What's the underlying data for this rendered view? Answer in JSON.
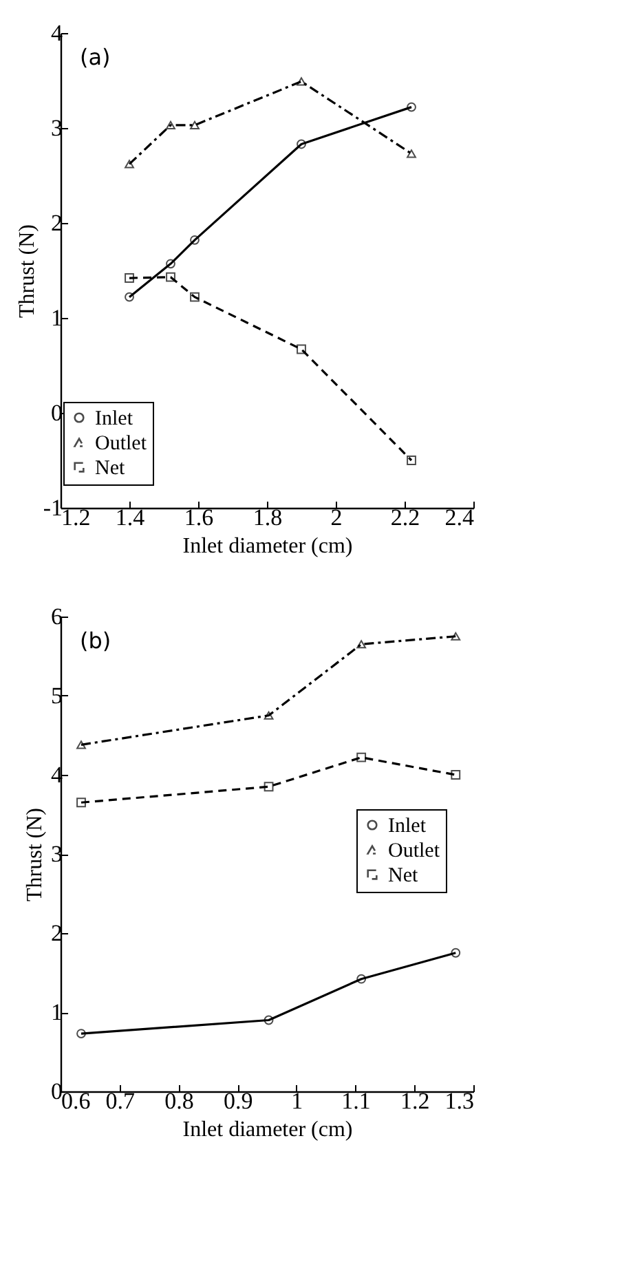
{
  "chart_data": [
    {
      "type": "line",
      "xlabel": "Inlet diameter (cm)",
      "ylabel": "Thrust (N)",
      "annotations": [
        "(a)"
      ],
      "x": [
        1.4,
        1.52,
        1.59,
        1.9,
        2.22
      ],
      "xlim": [
        1.2,
        2.4
      ],
      "xticks": [
        1.2,
        1.4,
        1.6,
        1.8,
        2,
        2.2,
        2.4
      ],
      "ylim": [
        -1,
        4
      ],
      "yticks": [
        -1,
        0,
        1,
        2,
        3,
        4
      ],
      "legend": "bottom left",
      "grid": false,
      "series": [
        {
          "name": "Inlet",
          "color": "#000000",
          "marker": "circle",
          "line_style": "solid",
          "values": [
            1.22,
            1.57,
            1.82,
            2.83,
            3.22
          ]
        },
        {
          "name": "Outlet",
          "color": "#000000",
          "marker": "triangle",
          "line_style": "dashdot",
          "values": [
            2.62,
            3.03,
            3.03,
            3.49,
            2.73
          ]
        },
        {
          "name": "Net",
          "color": "#000000",
          "marker": "square",
          "line_style": "dashed",
          "values": [
            1.42,
            1.43,
            1.22,
            0.67,
            -0.5
          ]
        }
      ]
    },
    {
      "type": "line",
      "xlabel": "Inlet diameter (cm)",
      "ylabel": "Thrust (N)",
      "annotations": [
        "(b)"
      ],
      "x": [
        0.635,
        0.953,
        1.11,
        1.27
      ],
      "xlim": [
        0.6,
        1.3
      ],
      "xticks": [
        0.6,
        0.7,
        0.8,
        0.9,
        1,
        1.1,
        1.2,
        1.3
      ],
      "ylim": [
        0,
        6
      ],
      "yticks": [
        0,
        1,
        2,
        3,
        4,
        5,
        6
      ],
      "legend": "right",
      "grid": false,
      "series": [
        {
          "name": "Inlet",
          "color": "#000000",
          "marker": "circle",
          "line_style": "solid",
          "values": [
            0.73,
            0.9,
            1.42,
            1.75
          ]
        },
        {
          "name": "Outlet",
          "color": "#000000",
          "marker": "triangle",
          "line_style": "dashdot",
          "values": [
            4.38,
            4.75,
            5.65,
            5.75
          ]
        },
        {
          "name": "Net",
          "color": "#000000",
          "marker": "square",
          "line_style": "dashed",
          "values": [
            3.65,
            3.85,
            4.22,
            4.0
          ]
        }
      ]
    }
  ]
}
